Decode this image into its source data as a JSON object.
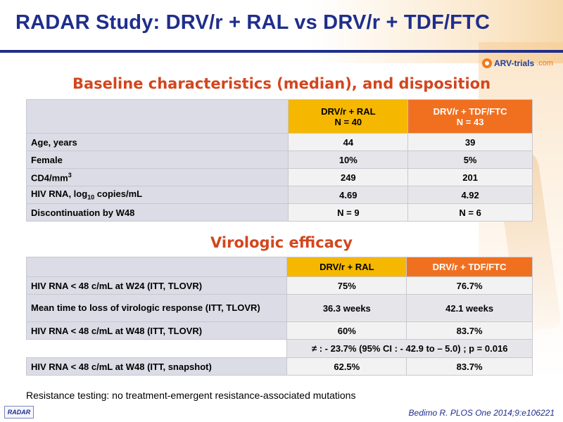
{
  "slide": {
    "title": "RADAR Study: DRV/r + RAL vs DRV/r + TDF/FTC",
    "brand": {
      "name": "ARV-trials",
      "suffix": ".com"
    }
  },
  "baseline": {
    "title": "Baseline characteristics (median), and disposition",
    "columns": [
      {
        "line1": "DRV/r + RAL",
        "line2": "N = 40"
      },
      {
        "line1": "DRV/r + TDF/FTC",
        "line2": "N = 43"
      }
    ],
    "rows": [
      {
        "label": "Age, years",
        "v1": "44",
        "v2": "39"
      },
      {
        "label": "Female",
        "v1": "10%",
        "v2": "5%"
      },
      {
        "label_main": "CD4/mm",
        "label_sup": "3",
        "v1": "249",
        "v2": "201"
      },
      {
        "label_pre": "HIV RNA, log",
        "label_sub": "10",
        "label_post": " copies/mL",
        "v1": "4.69",
        "v2": "4.92"
      },
      {
        "label": "Discontinuation by W48",
        "v1": "N = 9",
        "v2": "N = 6"
      }
    ]
  },
  "efficacy": {
    "title": "Virologic efficacy",
    "columns": [
      "DRV/r + RAL",
      "DRV/r + TDF/FTC"
    ],
    "rows": [
      {
        "label": "HIV RNA < 48 c/mL at W24 (ITT, TLOVR)",
        "v1": "75%",
        "v2": "76.7%"
      },
      {
        "label": "Mean time to loss of virologic response (ITT, TLOVR)",
        "v1": "36.3 weeks",
        "v2": "42.1 weeks"
      },
      {
        "label": "HIV RNA < 48 c/mL at W48 (ITT, TLOVR)",
        "v1": "60%",
        "v2": "83.7%"
      },
      {
        "label": "",
        "span": "≠ : - 23.7% (95% CI : - 42.9 to – 5.0) ; p = 0.016"
      },
      {
        "label": "HIV RNA < 48 c/mL at W48 (ITT, snapshot)",
        "v1": "62.5%",
        "v2": "83.7%"
      }
    ]
  },
  "footnote": "Resistance testing: no treatment-emergent  resistance-associated mutations",
  "logo": "RADAR",
  "citation": "Bedimo R. PLOS One 2014;9:e106221",
  "colors": {
    "title": "#1f2e8c",
    "section": "#d2461e",
    "ral": "#f5b700",
    "tdf": "#f07020"
  }
}
